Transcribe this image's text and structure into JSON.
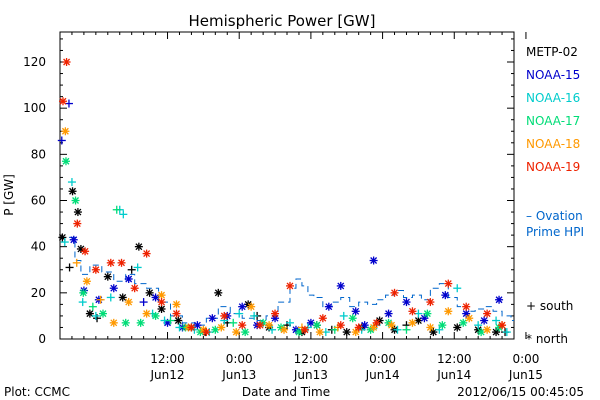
{
  "chart_data": {
    "type": "scatter",
    "title": "Hemispheric Power [GW]",
    "ylabel": "P [GW]",
    "xlabel": "Date and Time",
    "ylim": [
      0,
      133
    ],
    "yticks": [
      0,
      20,
      40,
      60,
      80,
      100,
      120
    ],
    "xlim": [
      0,
      76
    ],
    "xticks": [
      {
        "x": 18,
        "top": "12:00",
        "bottom": "Jun12"
      },
      {
        "x": 30,
        "top": "0:00",
        "bottom": "Jun13"
      },
      {
        "x": 42,
        "top": "12:00",
        "bottom": "Jun13"
      },
      {
        "x": 54,
        "top": "0:00",
        "bottom": "Jun14"
      },
      {
        "x": 66,
        "top": "12:00",
        "bottom": "Jun14"
      },
      {
        "x": 78,
        "top": "0:00",
        "bottom": "Jun15"
      }
    ],
    "grid": false,
    "legend_position": "right",
    "markers": {
      "south": "+",
      "north": "*"
    },
    "series": [
      {
        "name": "METP-02",
        "color": "#000000",
        "points": [
          [
            0.4,
            44,
            "north"
          ],
          [
            1.6,
            31,
            "south"
          ],
          [
            2.1,
            64,
            "north"
          ],
          [
            3.0,
            55,
            "north"
          ],
          [
            3.5,
            39,
            "north"
          ],
          [
            5.0,
            11,
            "north"
          ],
          [
            6.2,
            9,
            "south"
          ],
          [
            8.0,
            27,
            "north"
          ],
          [
            10.5,
            18,
            "north"
          ],
          [
            12.0,
            30,
            "south"
          ],
          [
            13.2,
            40,
            "north"
          ],
          [
            15.0,
            20,
            "north"
          ],
          [
            17.0,
            13,
            "north"
          ],
          [
            19.8,
            8,
            "north"
          ],
          [
            22.0,
            5,
            "north"
          ],
          [
            24.3,
            3,
            "south"
          ],
          [
            26.5,
            20,
            "north"
          ],
          [
            28.0,
            7,
            "south"
          ],
          [
            31.5,
            15,
            "north"
          ],
          [
            33.0,
            10,
            "south"
          ],
          [
            35.0,
            5,
            "north"
          ],
          [
            38.0,
            6,
            "south"
          ],
          [
            40.5,
            3,
            "north"
          ],
          [
            43.0,
            6,
            "north"
          ],
          [
            45.5,
            4,
            "south"
          ],
          [
            48.0,
            3,
            "north"
          ],
          [
            50.5,
            5,
            "north"
          ],
          [
            53.5,
            8,
            "north"
          ],
          [
            56.0,
            4,
            "north"
          ],
          [
            58.0,
            6,
            "south"
          ],
          [
            60.0,
            8,
            "north"
          ],
          [
            62.5,
            3,
            "north"
          ],
          [
            66.5,
            5,
            "north"
          ],
          [
            70.0,
            4,
            "north"
          ],
          [
            73.0,
            3,
            "north"
          ],
          [
            74.5,
            3,
            "south"
          ]
        ]
      },
      {
        "name": "NOAA-15",
        "color": "#0000cc",
        "points": [
          [
            0.3,
            86,
            "south"
          ],
          [
            1.5,
            102,
            "south"
          ],
          [
            2.3,
            43,
            "north"
          ],
          [
            4.0,
            21,
            "north"
          ],
          [
            6.5,
            17,
            "north"
          ],
          [
            9.0,
            22,
            "north"
          ],
          [
            11.5,
            26,
            "north"
          ],
          [
            14.0,
            16,
            "south"
          ],
          [
            16.0,
            18,
            "north"
          ],
          [
            18.0,
            7,
            "north"
          ],
          [
            20.5,
            5,
            "north"
          ],
          [
            23.0,
            6,
            "north"
          ],
          [
            25.5,
            9,
            "north"
          ],
          [
            28.0,
            10,
            "north"
          ],
          [
            30.5,
            14,
            "north"
          ],
          [
            33.0,
            6,
            "north"
          ],
          [
            36.0,
            9,
            "north"
          ],
          [
            39.5,
            4,
            "north"
          ],
          [
            42.0,
            7,
            "north"
          ],
          [
            45.0,
            14,
            "north"
          ],
          [
            47.0,
            23,
            "north"
          ],
          [
            49.5,
            12,
            "north"
          ],
          [
            51.0,
            6,
            "north"
          ],
          [
            52.5,
            34,
            "north"
          ],
          [
            55.0,
            11,
            "north"
          ],
          [
            58.0,
            16,
            "north"
          ],
          [
            61.0,
            9,
            "north"
          ],
          [
            64.5,
            19,
            "north"
          ],
          [
            68.0,
            11,
            "north"
          ],
          [
            71.0,
            8,
            "north"
          ],
          [
            73.5,
            17,
            "north"
          ]
        ]
      },
      {
        "name": "NOAA-16",
        "color": "#00cccc",
        "points": [
          [
            0.8,
            42,
            "south"
          ],
          [
            2.0,
            68,
            "south"
          ],
          [
            3.8,
            16,
            "south"
          ],
          [
            6.0,
            10,
            "south"
          ],
          [
            8.5,
            18,
            "south"
          ],
          [
            10.0,
            56,
            "south"
          ],
          [
            10.6,
            54,
            "south"
          ],
          [
            13.0,
            31,
            "south"
          ],
          [
            15.5,
            11,
            "south"
          ],
          [
            17.5,
            8,
            "south"
          ],
          [
            20.0,
            5,
            "south"
          ],
          [
            22.5,
            4,
            "south"
          ],
          [
            25.0,
            3,
            "south"
          ],
          [
            27.5,
            8,
            "south"
          ],
          [
            30.0,
            11,
            "south"
          ],
          [
            32.5,
            10,
            "south"
          ],
          [
            35.5,
            4,
            "south"
          ],
          [
            38.5,
            7,
            "south"
          ],
          [
            41.5,
            5,
            "south"
          ],
          [
            44.5,
            3,
            "south"
          ],
          [
            47.5,
            10,
            "south"
          ],
          [
            50.5,
            4,
            "south"
          ],
          [
            53.0,
            6,
            "south"
          ],
          [
            56.5,
            4,
            "south"
          ],
          [
            60.0,
            11,
            "south"
          ],
          [
            63.5,
            4,
            "south"
          ],
          [
            66.5,
            22,
            "south"
          ],
          [
            70.0,
            6,
            "south"
          ],
          [
            73.0,
            8,
            "south"
          ],
          [
            74.8,
            3,
            "south"
          ]
        ]
      },
      {
        "name": "NOAA-17",
        "color": "#00dd77",
        "points": [
          [
            1.0,
            77,
            "north"
          ],
          [
            2.6,
            60,
            "north"
          ],
          [
            3.9,
            20,
            "north"
          ],
          [
            5.5,
            14,
            "south"
          ],
          [
            7.2,
            11,
            "north"
          ],
          [
            9.5,
            56,
            "south"
          ],
          [
            11.0,
            7,
            "north"
          ],
          [
            13.5,
            7,
            "north"
          ],
          [
            16.0,
            10,
            "north"
          ],
          [
            18.5,
            8,
            "south"
          ],
          [
            21.0,
            5,
            "north"
          ],
          [
            23.5,
            3,
            "north"
          ],
          [
            26.0,
            4,
            "north"
          ],
          [
            29.0,
            7,
            "south"
          ],
          [
            31.0,
            3,
            "north"
          ],
          [
            34.0,
            7,
            "north"
          ],
          [
            37.0,
            5,
            "north"
          ],
          [
            40.0,
            3,
            "north"
          ],
          [
            43.0,
            6,
            "north"
          ],
          [
            46.0,
            4,
            "south"
          ],
          [
            49.0,
            9,
            "north"
          ],
          [
            52.0,
            4,
            "north"
          ],
          [
            55.0,
            7,
            "north"
          ],
          [
            58.0,
            4,
            "south"
          ],
          [
            61.5,
            11,
            "north"
          ],
          [
            64.0,
            6,
            "north"
          ],
          [
            67.5,
            7,
            "north"
          ],
          [
            70.5,
            3,
            "north"
          ],
          [
            73.5,
            5,
            "north"
          ]
        ]
      },
      {
        "name": "NOAA-18",
        "color": "#ff9900",
        "points": [
          [
            0.9,
            90,
            "north"
          ],
          [
            2.8,
            33,
            "south"
          ],
          [
            4.5,
            25,
            "north"
          ],
          [
            6.8,
            17,
            "south"
          ],
          [
            9.0,
            7,
            "north"
          ],
          [
            11.5,
            16,
            "north"
          ],
          [
            14.5,
            11,
            "north"
          ],
          [
            17.0,
            19,
            "north"
          ],
          [
            19.5,
            15,
            "north"
          ],
          [
            21.5,
            5,
            "north"
          ],
          [
            24.0,
            4,
            "north"
          ],
          [
            27.0,
            5,
            "north"
          ],
          [
            29.5,
            3,
            "north"
          ],
          [
            32.0,
            14,
            "north"
          ],
          [
            35.0,
            6,
            "north"
          ],
          [
            37.5,
            4,
            "north"
          ],
          [
            40.5,
            5,
            "south"
          ],
          [
            43.5,
            3,
            "north"
          ],
          [
            46.5,
            5,
            "south"
          ],
          [
            49.5,
            3,
            "north"
          ],
          [
            52.5,
            5,
            "north"
          ],
          [
            55.5,
            6,
            "north"
          ],
          [
            59.0,
            7,
            "north"
          ],
          [
            62.0,
            5,
            "north"
          ],
          [
            65.0,
            12,
            "north"
          ],
          [
            68.5,
            9,
            "north"
          ],
          [
            71.5,
            4,
            "north"
          ],
          [
            74.0,
            6,
            "north"
          ]
        ]
      },
      {
        "name": "NOAA-19",
        "color": "#ee2200",
        "points": [
          [
            0.5,
            103,
            "north"
          ],
          [
            1.1,
            120,
            "north"
          ],
          [
            2.9,
            50,
            "north"
          ],
          [
            4.2,
            38,
            "north"
          ],
          [
            6.0,
            30,
            "north"
          ],
          [
            8.5,
            33,
            "north"
          ],
          [
            10.3,
            33,
            "north"
          ],
          [
            12.5,
            22,
            "north"
          ],
          [
            14.5,
            37,
            "north"
          ],
          [
            17.0,
            16,
            "north"
          ],
          [
            19.5,
            11,
            "north"
          ],
          [
            22.0,
            5,
            "north"
          ],
          [
            24.5,
            3,
            "north"
          ],
          [
            27.5,
            10,
            "north"
          ],
          [
            30.5,
            6,
            "north"
          ],
          [
            33.5,
            6,
            "north"
          ],
          [
            36.0,
            11,
            "north"
          ],
          [
            38.5,
            23,
            "north"
          ],
          [
            41.0,
            4,
            "north"
          ],
          [
            44.0,
            9,
            "north"
          ],
          [
            47.0,
            6,
            "north"
          ],
          [
            50.0,
            5,
            "north"
          ],
          [
            53.0,
            7,
            "north"
          ],
          [
            56.0,
            20,
            "north"
          ],
          [
            59.0,
            12,
            "north"
          ],
          [
            62.0,
            16,
            "north"
          ],
          [
            65.0,
            24,
            "north"
          ],
          [
            68.0,
            14,
            "north"
          ],
          [
            71.5,
            11,
            "north"
          ],
          [
            74.0,
            6,
            "north"
          ]
        ]
      }
    ],
    "ovation_line": {
      "label_line1": "Ovation",
      "label_line2": "Prime HPI",
      "dash_symbol": "–",
      "color": "#0066cc",
      "steps": [
        [
          1.5,
          44
        ],
        [
          2.5,
          34
        ],
        [
          3.5,
          28
        ],
        [
          5,
          32
        ],
        [
          7,
          29
        ],
        [
          9,
          25
        ],
        [
          11,
          28
        ],
        [
          12.5,
          24
        ],
        [
          14.5,
          22
        ],
        [
          16.5,
          16
        ],
        [
          18.5,
          10
        ],
        [
          20.5,
          7
        ],
        [
          22.5,
          6
        ],
        [
          24.5,
          9
        ],
        [
          26.5,
          14
        ],
        [
          28.5,
          11
        ],
        [
          30.5,
          9
        ],
        [
          32.5,
          8
        ],
        [
          34.5,
          10
        ],
        [
          36.5,
          16
        ],
        [
          38.5,
          22
        ],
        [
          39.5,
          26
        ],
        [
          40.5,
          23
        ],
        [
          41.5,
          19
        ],
        [
          42.5,
          18
        ],
        [
          44,
          14
        ],
        [
          45.5,
          16
        ],
        [
          47,
          18
        ],
        [
          48.5,
          14
        ],
        [
          50,
          16
        ],
        [
          51.5,
          15
        ],
        [
          53,
          17
        ],
        [
          54.5,
          19
        ],
        [
          56,
          21
        ],
        [
          57.5,
          18
        ],
        [
          59,
          19
        ],
        [
          60.5,
          17
        ],
        [
          62,
          22
        ],
        [
          63.5,
          24
        ],
        [
          65,
          18
        ],
        [
          66.5,
          14
        ],
        [
          68,
          12
        ],
        [
          69.5,
          13
        ],
        [
          71,
          14
        ],
        [
          72.5,
          12
        ],
        [
          74,
          10
        ],
        [
          75.5,
          8
        ]
      ]
    },
    "marker_legend": {
      "south_symbol": "+",
      "south_label": "south",
      "north_symbol": "*",
      "north_label": "north"
    }
  },
  "footer": {
    "left": "Plot: CCMC",
    "center": "Date and Time",
    "right": "2012/06/15 00:45:05"
  }
}
